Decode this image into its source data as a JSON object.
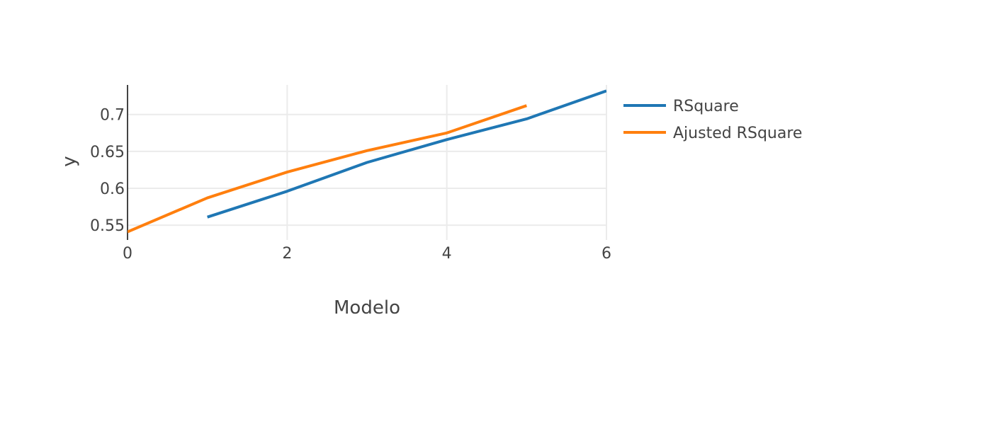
{
  "chart_data": {
    "type": "line",
    "xlabel": "Modelo",
    "ylabel": "y",
    "xlim": [
      0,
      6
    ],
    "ylim": [
      0.53,
      0.74
    ],
    "x_ticks": [
      0,
      2,
      4,
      6
    ],
    "x_tick_labels": [
      "0",
      "2",
      "4",
      "6"
    ],
    "y_ticks": [
      0.55,
      0.6,
      0.65,
      0.7
    ],
    "y_tick_labels": [
      "0.55",
      "0.6",
      "0.65",
      "0.7"
    ],
    "grid": true,
    "legend_position": "right",
    "series": [
      {
        "name": "RSquare",
        "color": "#1f77b4",
        "x": [
          1,
          2,
          3,
          4,
          5,
          6
        ],
        "y": [
          0.561,
          0.596,
          0.635,
          0.666,
          0.694,
          0.732
        ]
      },
      {
        "name": "Ajusted RSquare",
        "color": "#ff7f0e",
        "x": [
          0,
          1,
          2,
          3,
          4,
          5
        ],
        "y": [
          0.541,
          0.587,
          0.622,
          0.651,
          0.675,
          0.712
        ]
      }
    ]
  }
}
